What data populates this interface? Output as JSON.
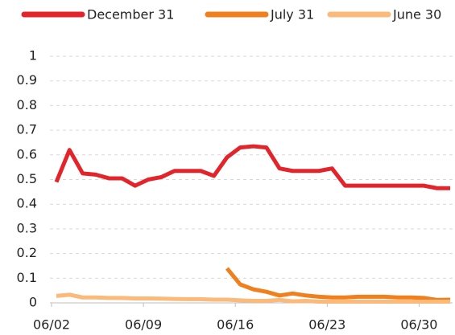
{
  "chart_data": {
    "type": "line",
    "categories": [
      "06/02",
      null,
      null,
      null,
      null,
      null,
      null,
      "06/09",
      null,
      null,
      null,
      null,
      null,
      null,
      "06/16",
      null,
      null,
      null,
      null,
      null,
      null,
      "06/23",
      null,
      null,
      null,
      null,
      null,
      null,
      "06/30",
      null,
      null
    ],
    "series": [
      {
        "name": "December 31",
        "color": "#e3242b",
        "values": [
          0.49,
          0.62,
          0.525,
          0.52,
          0.505,
          0.505,
          0.475,
          0.5,
          0.51,
          0.535,
          0.535,
          0.535,
          0.515,
          0.59,
          0.63,
          0.635,
          0.63,
          0.545,
          0.535,
          0.535,
          0.535,
          0.545,
          0.475,
          0.475,
          0.475,
          0.475,
          0.475,
          0.475,
          0.475,
          0.465,
          0.465
        ]
      },
      {
        "name": "July 31",
        "color": "#f07f1e",
        "values": [
          null,
          null,
          null,
          null,
          null,
          null,
          null,
          null,
          null,
          null,
          null,
          null,
          null,
          0.14,
          0.075,
          0.055,
          0.045,
          0.03,
          0.038,
          0.03,
          0.025,
          0.022,
          0.022,
          0.025,
          0.025,
          0.025,
          0.022,
          0.022,
          0.02,
          0.012,
          0.013
        ]
      },
      {
        "name": "June 30",
        "color": "#fbb97a",
        "values": [
          0.028,
          0.033,
          0.022,
          0.022,
          0.02,
          0.02,
          0.018,
          0.018,
          0.017,
          0.016,
          0.015,
          0.015,
          0.013,
          0.013,
          0.01,
          0.008,
          0.008,
          0.012,
          0.006,
          0.008,
          0.005,
          0.005,
          0.005,
          0.005,
          0.005,
          0.005,
          0.005,
          0.005,
          0.005,
          0.005,
          0.005
        ]
      }
    ],
    "ylim": [
      0,
      1
    ],
    "yticks": [
      0,
      0.1,
      0.2,
      0.3,
      0.4,
      0.5,
      0.6,
      0.7,
      0.8,
      0.9,
      1
    ],
    "grid": true,
    "legend": "top"
  }
}
